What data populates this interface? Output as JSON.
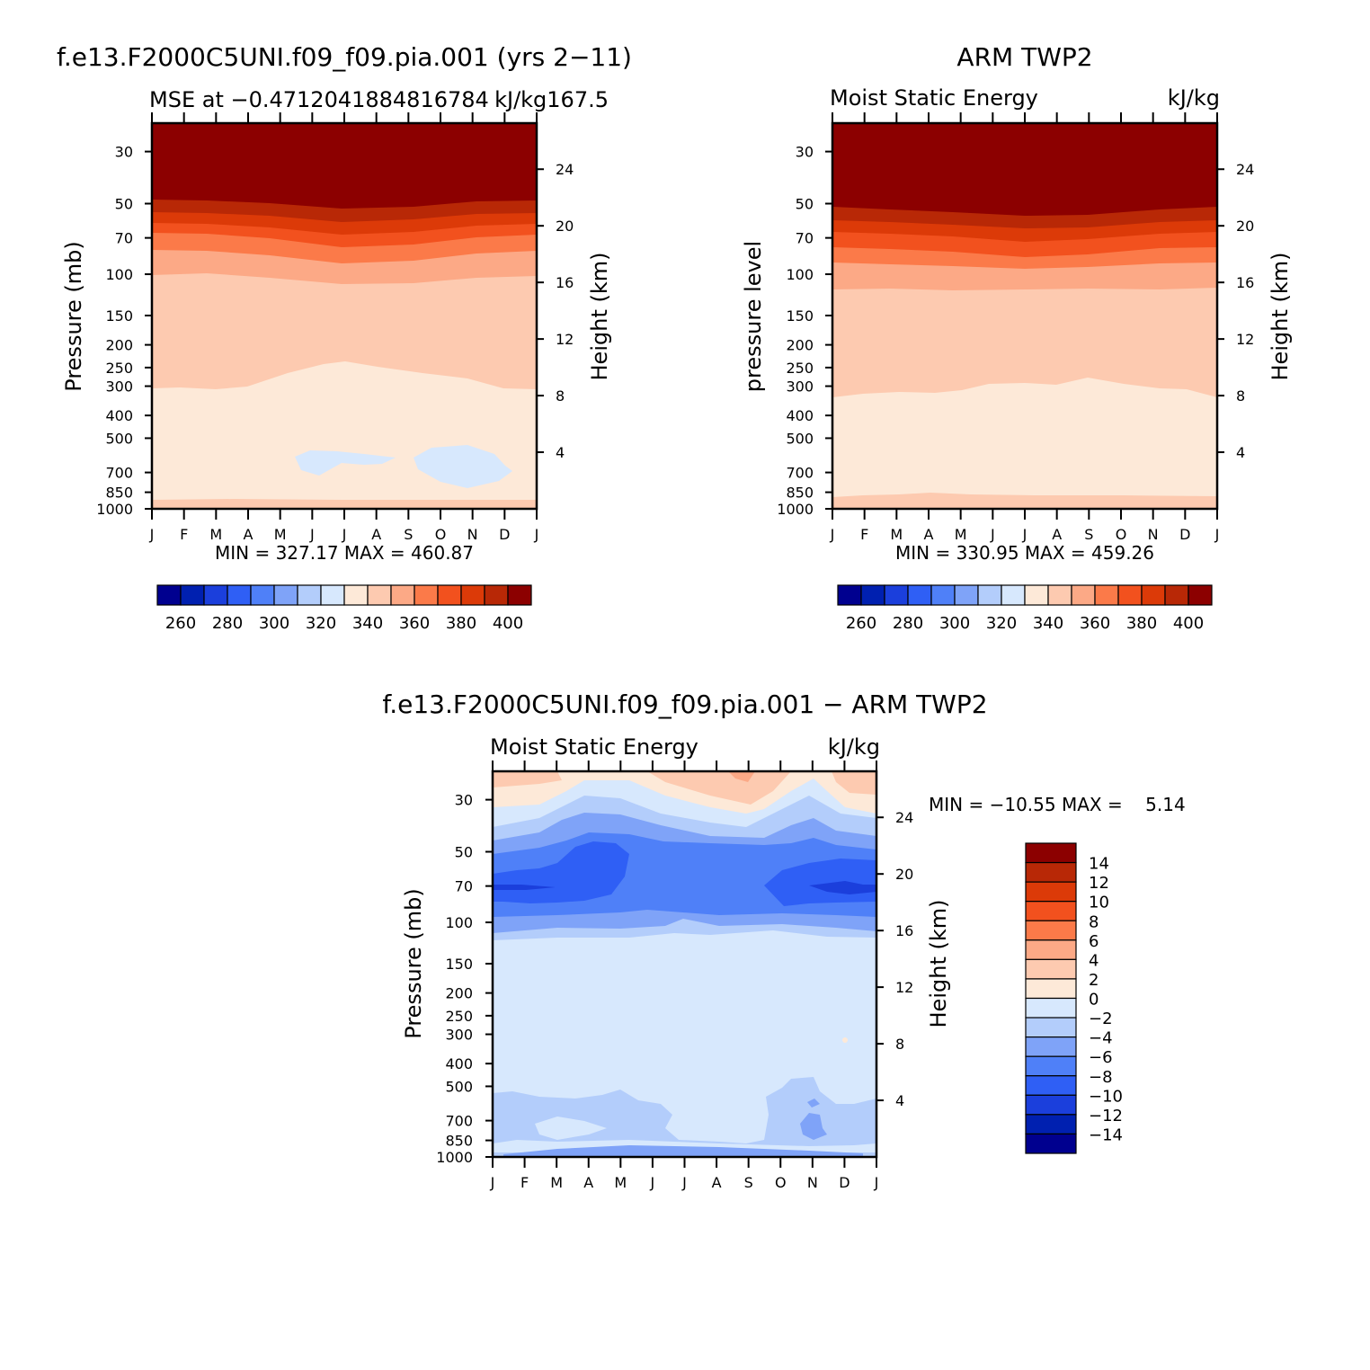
{
  "palette": {
    "mse": [
      "#00008f",
      "#0020b0",
      "#1b3fdc",
      "#2f5ff5",
      "#4f80f8",
      "#7fa3f8",
      "#b3cdfb",
      "#d7e8fd",
      "#fde9d8",
      "#fdcab0",
      "#fca986",
      "#fb7a49",
      "#f2511e",
      "#dc3a08",
      "#b82806",
      "#8c0000"
    ],
    "diff": [
      "#00008f",
      "#0020b0",
      "#1b3fdc",
      "#2f5ff5",
      "#4f80f8",
      "#7fa3f8",
      "#b3cdfb",
      "#d7e8fd",
      "#fde9d8",
      "#fdcab0",
      "#fca986",
      "#fb7a49",
      "#f2511e",
      "#dc3a08",
      "#b82806",
      "#8c0000"
    ]
  },
  "chart_data": [
    {
      "type": "heatmap",
      "title": "f.e13.F2000C5UNI.f09_f09.pia.001 (yrs 2−11)",
      "subtitle_left": "MSE at −0.4712041884816784",
      "subtitle_right": "kJ/kg167.5",
      "ylabel": "Pressure (mb)",
      "y2label": "Height (km)",
      "x_ticks": [
        "J",
        "F",
        "M",
        "A",
        "M",
        "J",
        "J",
        "A",
        "S",
        "O",
        "N",
        "D",
        "J"
      ],
      "y_ticks": [
        "30",
        "50",
        "70",
        "100",
        "150",
        "200",
        "250",
        "300",
        "400",
        "500",
        "700",
        "850",
        "1000"
      ],
      "y2_ticks": [
        "24",
        "20",
        "16",
        "12",
        "8",
        "4"
      ],
      "stats": "MIN = 327.17 MAX = 460.87",
      "colorbar_labels": [
        "260",
        "280",
        "300",
        "320",
        "340",
        "360",
        "380",
        "400"
      ],
      "levels_kJ_per_kg": [
        250,
        260,
        270,
        280,
        290,
        300,
        310,
        320,
        330,
        340,
        350,
        360,
        370,
        380,
        390,
        400
      ],
      "min": 327.17,
      "max": 460.87
    },
    {
      "type": "heatmap",
      "title": "ARM TWP2",
      "subtitle_left": "Moist Static Energy",
      "subtitle_right": "kJ/kg",
      "ylabel": "pressure level",
      "y2label": "Height (km)",
      "x_ticks": [
        "J",
        "F",
        "M",
        "A",
        "M",
        "J",
        "J",
        "A",
        "S",
        "O",
        "N",
        "D",
        "J"
      ],
      "y_ticks": [
        "30",
        "50",
        "70",
        "100",
        "150",
        "200",
        "250",
        "300",
        "400",
        "500",
        "700",
        "850",
        "1000"
      ],
      "y2_ticks": [
        "24",
        "20",
        "16",
        "12",
        "8",
        "4"
      ],
      "stats": "MIN = 330.95 MAX = 459.26",
      "colorbar_labels": [
        "260",
        "280",
        "300",
        "320",
        "340",
        "360",
        "380",
        "400"
      ],
      "levels_kJ_per_kg": [
        250,
        260,
        270,
        280,
        290,
        300,
        310,
        320,
        330,
        340,
        350,
        360,
        370,
        380,
        390,
        400
      ],
      "min": 330.95,
      "max": 459.26
    },
    {
      "type": "heatmap",
      "title": "f.e13.F2000C5UNI.f09_f09.pia.001 − ARM TWP2",
      "subtitle_left": "Moist Static Energy",
      "subtitle_right": "kJ/kg",
      "ylabel": "Pressure (mb)",
      "y2label": "Height (km)",
      "x_ticks": [
        "J",
        "F",
        "M",
        "A",
        "M",
        "J",
        "J",
        "A",
        "S",
        "O",
        "N",
        "D",
        "J"
      ],
      "y_ticks": [
        "30",
        "50",
        "70",
        "100",
        "150",
        "200",
        "250",
        "300",
        "400",
        "500",
        "700",
        "850",
        "1000"
      ],
      "y2_ticks": [
        "24",
        "20",
        "16",
        "12",
        "8",
        "4"
      ],
      "stats": "MIN = −10.55 MAX =    5.14",
      "colorbar_labels": [
        "14",
        "12",
        "10",
        "8",
        "6",
        "4",
        "2",
        "0",
        "−2",
        "−4",
        "−6",
        "−8",
        "−10",
        "−12",
        "−14"
      ],
      "levels_kJ_per_kg": [
        -14,
        -12,
        -10,
        -8,
        -6,
        -4,
        -2,
        0,
        2,
        4,
        6,
        8,
        10,
        12,
        14
      ],
      "min": -10.55,
      "max": 5.14
    }
  ]
}
